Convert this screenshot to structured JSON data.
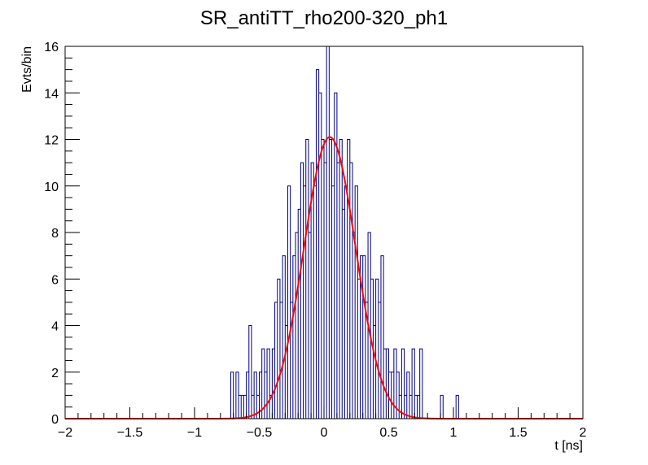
{
  "chart_data": {
    "type": "histogram",
    "title": "SR_antiTT_rho200-320_ph1",
    "xlabel": "t [ns]",
    "ylabel": "Evts/bin",
    "xlim": [
      -2,
      2
    ],
    "ylim": [
      0,
      16
    ],
    "x_major_ticks": [
      -2,
      -1.5,
      -1,
      -0.5,
      0,
      0.5,
      1,
      1.5,
      2
    ],
    "x_tick_labels": [
      "−2",
      "−1.5",
      "−1",
      "−0.5",
      "0",
      "0.5",
      "1",
      "1.5",
      "2"
    ],
    "y_major_ticks": [
      0,
      2,
      4,
      6,
      8,
      10,
      12,
      14,
      16
    ],
    "y_tick_labels": [
      "0",
      "2",
      "4",
      "6",
      "8",
      "10",
      "12",
      "14",
      "16"
    ],
    "series": [
      {
        "kind": "step-histogram",
        "color": "#000080",
        "bin_width": 0.02,
        "bins_x_start": [
          -0.72,
          -0.7,
          -0.68,
          -0.66,
          -0.64,
          -0.62,
          -0.6,
          -0.58,
          -0.56,
          -0.54,
          -0.52,
          -0.5,
          -0.48,
          -0.46,
          -0.44,
          -0.42,
          -0.4,
          -0.38,
          -0.36,
          -0.34,
          -0.32,
          -0.3,
          -0.28,
          -0.26,
          -0.24,
          -0.22,
          -0.2,
          -0.18,
          -0.16,
          -0.14,
          -0.12,
          -0.1,
          -0.08,
          -0.06,
          -0.04,
          -0.02,
          0.0,
          0.02,
          0.04,
          0.06,
          0.08,
          0.1,
          0.12,
          0.14,
          0.16,
          0.18,
          0.2,
          0.22,
          0.24,
          0.26,
          0.28,
          0.3,
          0.32,
          0.34,
          0.36,
          0.38,
          0.4,
          0.42,
          0.44,
          0.46,
          0.48,
          0.5,
          0.52,
          0.54,
          0.56,
          0.58,
          0.6,
          0.62,
          0.64,
          0.66,
          0.68,
          0.7,
          0.72,
          0.74,
          0.9,
          1.02
        ],
        "counts": [
          2,
          0,
          2,
          1,
          1,
          1,
          2,
          4,
          1,
          2,
          1,
          2,
          3,
          2,
          3,
          1,
          3,
          5,
          6,
          5,
          7,
          4,
          10,
          5,
          7,
          8,
          9,
          11,
          10,
          12,
          8,
          11,
          10,
          15,
          14,
          12,
          11,
          16,
          12,
          10,
          14,
          11,
          12,
          9,
          10,
          12,
          11,
          8,
          10,
          6,
          7,
          7,
          5,
          8,
          6,
          4,
          6,
          5,
          7,
          3,
          3,
          2,
          2,
          3,
          2,
          1,
          3,
          1,
          2,
          1,
          3,
          1,
          1,
          3,
          1,
          1
        ]
      },
      {
        "kind": "gaussian-fit",
        "color": "#ff0000",
        "amplitude": 12.1,
        "mean": 0.045,
        "sigma": 0.2
      }
    ],
    "grid": false,
    "legend": "none"
  }
}
